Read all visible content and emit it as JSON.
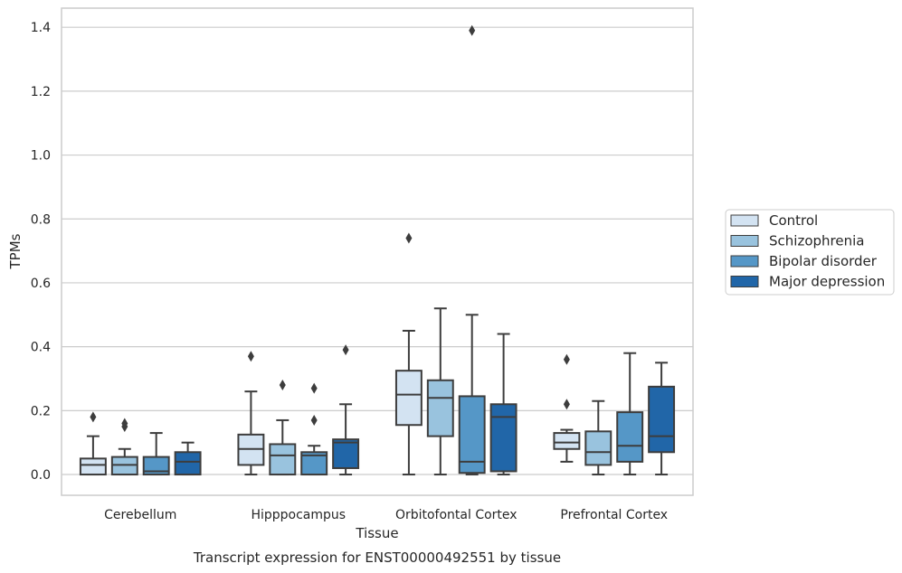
{
  "chart_data": {
    "type": "box",
    "caption": "Transcript expression for ENST00000492551 by tissue",
    "xlabel": "Tissue",
    "ylabel": "TPMs",
    "ylim": [
      -0.065,
      1.46
    ],
    "yticks": [
      0.0,
      0.2,
      0.4,
      0.6,
      0.8,
      1.0,
      1.2,
      1.4
    ],
    "grid": "horizontal",
    "legend_position": "right",
    "categories": [
      "Cerebellum",
      "Hipppocampus",
      "Orbitofontal Cortex",
      "Prefrontal Cortex"
    ],
    "series": [
      {
        "name": "Control",
        "color": "#d3e3f2",
        "boxes": [
          {
            "whislo": 0.0,
            "q1": 0.0,
            "med": 0.03,
            "q3": 0.05,
            "whishi": 0.12,
            "fliers": [
              0.18
            ]
          },
          {
            "whislo": 0.0,
            "q1": 0.03,
            "med": 0.08,
            "q3": 0.125,
            "whishi": 0.26,
            "fliers": [
              0.37
            ]
          },
          {
            "whislo": 0.0,
            "q1": 0.155,
            "med": 0.25,
            "q3": 0.325,
            "whishi": 0.45,
            "fliers": [
              0.74
            ]
          },
          {
            "whislo": 0.04,
            "q1": 0.08,
            "med": 0.1,
            "q3": 0.13,
            "whishi": 0.14,
            "fliers": [
              0.22,
              0.36
            ]
          }
        ]
      },
      {
        "name": "Schizophrenia",
        "color": "#99c3de",
        "boxes": [
          {
            "whislo": 0.0,
            "q1": 0.0,
            "med": 0.03,
            "q3": 0.055,
            "whishi": 0.08,
            "fliers": [
              0.15,
              0.16
            ]
          },
          {
            "whislo": 0.0,
            "q1": 0.0,
            "med": 0.06,
            "q3": 0.095,
            "whishi": 0.17,
            "fliers": [
              0.28
            ]
          },
          {
            "whislo": 0.0,
            "q1": 0.12,
            "med": 0.24,
            "q3": 0.295,
            "whishi": 0.52,
            "fliers": []
          },
          {
            "whislo": 0.0,
            "q1": 0.03,
            "med": 0.07,
            "q3": 0.135,
            "whishi": 0.23,
            "fliers": []
          }
        ]
      },
      {
        "name": "Bipolar disorder",
        "color": "#5597c7",
        "boxes": [
          {
            "whislo": 0.0,
            "q1": 0.0,
            "med": 0.01,
            "q3": 0.055,
            "whishi": 0.13,
            "fliers": []
          },
          {
            "whislo": 0.0,
            "q1": 0.0,
            "med": 0.06,
            "q3": 0.07,
            "whishi": 0.09,
            "fliers": [
              0.17,
              0.27
            ]
          },
          {
            "whislo": 0.0,
            "q1": 0.005,
            "med": 0.04,
            "q3": 0.245,
            "whishi": 0.5,
            "fliers": [
              1.39
            ]
          },
          {
            "whislo": 0.0,
            "q1": 0.04,
            "med": 0.09,
            "q3": 0.195,
            "whishi": 0.38,
            "fliers": []
          }
        ]
      },
      {
        "name": "Major depression",
        "color": "#2166a8",
        "boxes": [
          {
            "whislo": 0.0,
            "q1": 0.0,
            "med": 0.04,
            "q3": 0.07,
            "whishi": 0.1,
            "fliers": []
          },
          {
            "whislo": 0.0,
            "q1": 0.02,
            "med": 0.1,
            "q3": 0.11,
            "whishi": 0.22,
            "fliers": [
              0.39
            ]
          },
          {
            "whislo": 0.0,
            "q1": 0.01,
            "med": 0.18,
            "q3": 0.22,
            "whishi": 0.44,
            "fliers": []
          },
          {
            "whislo": 0.0,
            "q1": 0.07,
            "med": 0.12,
            "q3": 0.275,
            "whishi": 0.35,
            "fliers": []
          }
        ]
      }
    ]
  }
}
